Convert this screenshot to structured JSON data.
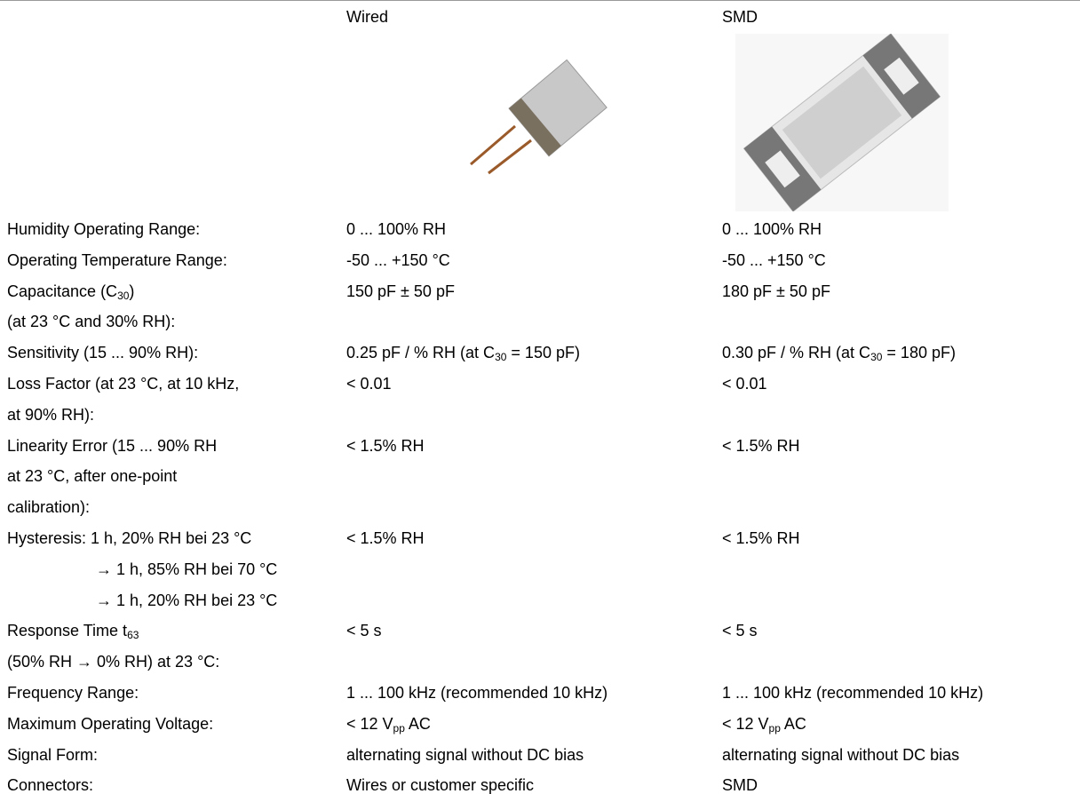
{
  "header": {
    "wired": "Wired",
    "smd": "SMD"
  },
  "rows": [
    {
      "label": [
        [
          "Humidity Operating Range:"
        ]
      ],
      "wired": [
        [
          "0 ... 100% RH"
        ]
      ],
      "smd": [
        [
          "0 ... 100% RH"
        ]
      ]
    },
    {
      "label": [
        [
          "Operating Temperature Range:"
        ]
      ],
      "wired": [
        [
          "-50 ... +150 °C"
        ]
      ],
      "smd": [
        [
          "-50 ... +150 °C"
        ]
      ]
    },
    {
      "label": [
        [
          "Capacitance (C",
          {
            "sub": "30"
          },
          ")"
        ],
        [
          "(at 23 °C and 30% RH):"
        ]
      ],
      "wired": [
        [
          "150 pF ± 50 pF"
        ]
      ],
      "smd": [
        [
          "180 pF ± 50 pF"
        ]
      ]
    },
    {
      "label": [
        [
          "Sensitivity (15 ... 90% RH):"
        ]
      ],
      "wired": [
        [
          "0.25 pF / % RH (at C",
          {
            "sub": "30"
          },
          " = 150 pF)"
        ]
      ],
      "smd": [
        [
          "0.30 pF / % RH (at C",
          {
            "sub": "30"
          },
          " = 180 pF)"
        ]
      ]
    },
    {
      "label": [
        [
          "Loss Factor (at 23 °C, at 10 kHz,"
        ],
        [
          "at 90% RH):"
        ]
      ],
      "wired": [
        [
          "< 0.01"
        ]
      ],
      "smd": [
        [
          "< 0.01"
        ]
      ]
    },
    {
      "label": [
        [
          "Linearity Error (15 ... 90% RH"
        ],
        [
          "at 23 °C, after one-point"
        ],
        [
          "calibration):"
        ]
      ],
      "wired": [
        [
          "< 1.5% RH"
        ]
      ],
      "smd": [
        [
          "< 1.5% RH"
        ]
      ]
    },
    {
      "label": [
        [
          "Hysteresis: 1 h, 20% RH bei 23 °C"
        ],
        [
          "→ 1 h, 85% RH bei 70 °C"
        ],
        [
          "→ 1 h, 20% RH bei 23 °C"
        ]
      ],
      "wired": [
        [
          "< 1.5% RH"
        ]
      ],
      "smd": [
        [
          "< 1.5% RH"
        ]
      ]
    },
    {
      "label": [
        [
          "Response Time t",
          {
            "sub": "63"
          }
        ],
        [
          "(50% RH → 0% RH) at 23 °C:"
        ]
      ],
      "wired": [
        [
          "< 5 s"
        ]
      ],
      "smd": [
        [
          "< 5 s"
        ]
      ]
    },
    {
      "label": [
        [
          "Frequency Range:"
        ]
      ],
      "wired": [
        [
          "1 ... 100 kHz (recommended 10 kHz)"
        ]
      ],
      "smd": [
        [
          "1 ... 100 kHz (recommended 10 kHz)"
        ]
      ]
    },
    {
      "label": [
        [
          "Maximum Operating Voltage:"
        ]
      ],
      "wired": [
        [
          "< 12 V",
          {
            "sub": "pp"
          },
          " AC"
        ]
      ],
      "smd": [
        [
          "< 12 V",
          {
            "sub": "pp"
          },
          " AC"
        ]
      ]
    },
    {
      "label": [
        [
          "Signal Form:"
        ]
      ],
      "wired": [
        [
          "alternating signal without DC bias"
        ]
      ],
      "smd": [
        [
          "alternating signal without DC bias"
        ]
      ]
    },
    {
      "label": [
        [
          "Connectors:"
        ]
      ],
      "wired": [
        [
          "Wires or customer specific"
        ]
      ],
      "smd": [
        [
          "SMD"
        ]
      ]
    }
  ]
}
